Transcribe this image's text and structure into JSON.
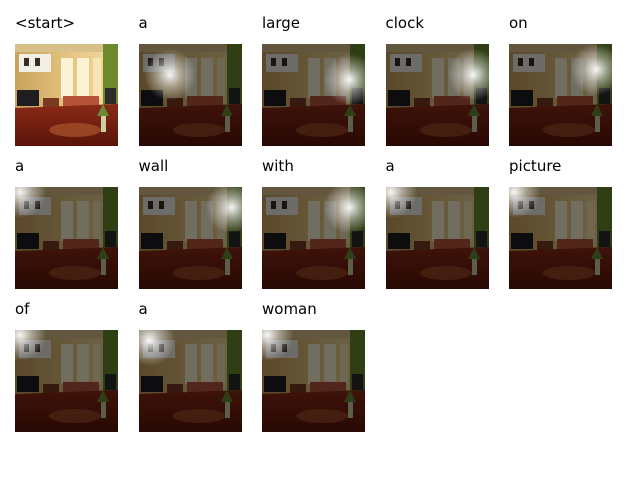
{
  "caption_steps": [
    {
      "word": "<start>",
      "attention": null
    },
    {
      "word": "a",
      "attention": [
        0.3,
        0.3
      ]
    },
    {
      "word": "large",
      "attention": [
        0.85,
        0.35
      ]
    },
    {
      "word": "clock",
      "attention": [
        0.85,
        0.3
      ]
    },
    {
      "word": "on",
      "attention": [
        0.85,
        0.25
      ]
    },
    {
      "word": "a",
      "attention": [
        0.05,
        0.05
      ]
    },
    {
      "word": "wall",
      "attention": [
        0.9,
        0.2
      ]
    },
    {
      "word": "with",
      "attention": [
        0.85,
        0.2
      ]
    },
    {
      "word": "a",
      "attention": [
        0.05,
        0.05
      ]
    },
    {
      "word": "picture",
      "attention": [
        0.05,
        0.05
      ]
    },
    {
      "word": "of",
      "attention": [
        0.05,
        0.05
      ]
    },
    {
      "word": "a",
      "attention": [
        0.1,
        0.1
      ]
    },
    {
      "word": "woman",
      "attention": [
        0.05,
        0.05
      ]
    }
  ]
}
